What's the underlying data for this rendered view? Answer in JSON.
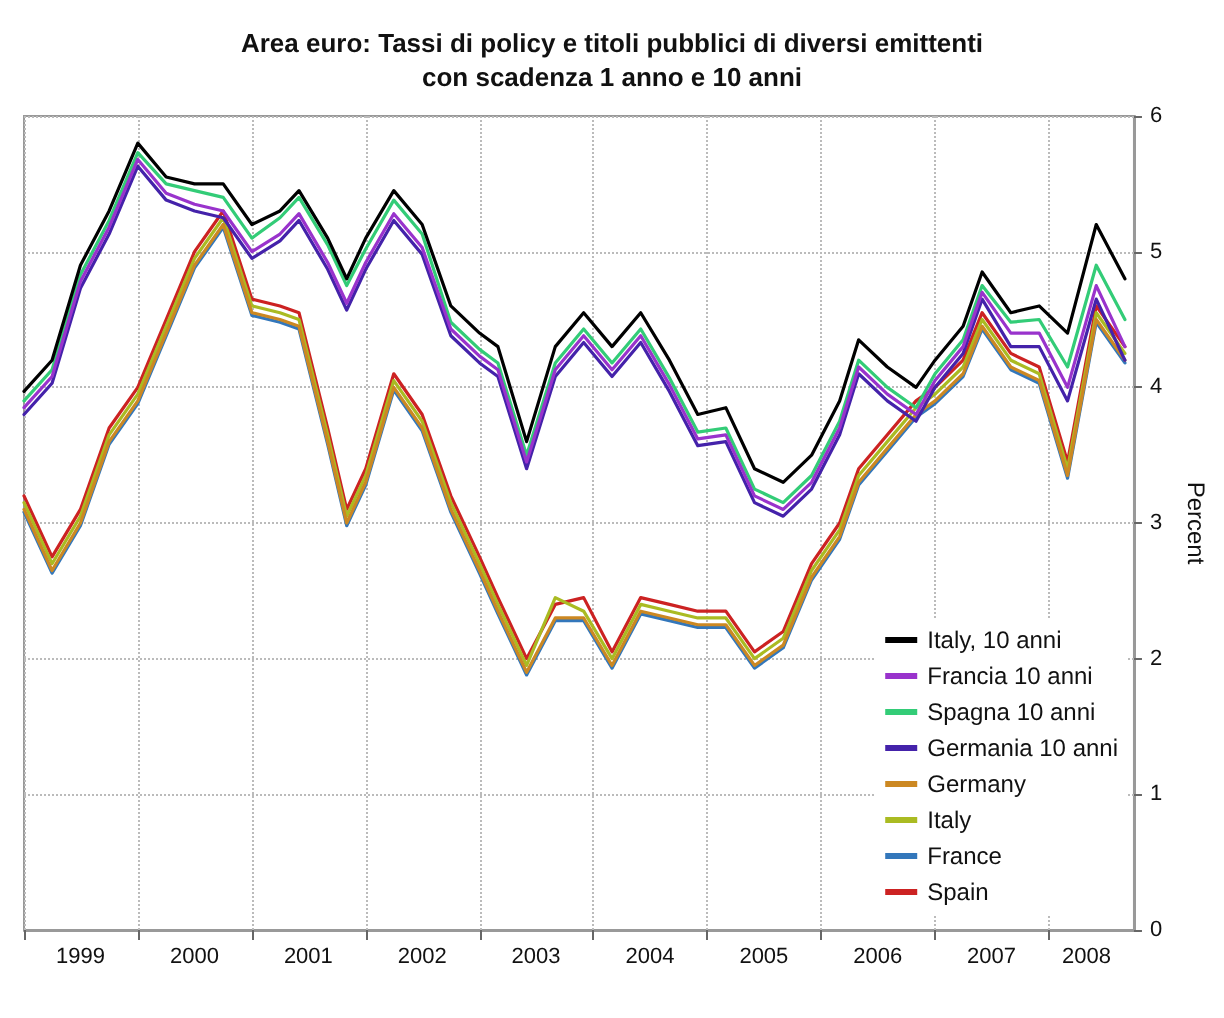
{
  "chart_data": {
    "type": "line",
    "title": "Area euro: Tassi di policy e titoli pubblici di diversi emittenti\ncon scadenza 1 anno e 10 anni",
    "ylabel": "Percent",
    "x": [
      "1999-01",
      "1999-04",
      "1999-07",
      "1999-10",
      "2000-01",
      "2000-04",
      "2000-07",
      "2000-10",
      "2001-01",
      "2001-04",
      "2001-06",
      "2001-09",
      "2001-11",
      "2002-01",
      "2002-04",
      "2002-07",
      "2002-10",
      "2003-01",
      "2003-03",
      "2003-06",
      "2003-09",
      "2003-12",
      "2004-03",
      "2004-06",
      "2004-09",
      "2004-12",
      "2005-03",
      "2005-06",
      "2005-09",
      "2005-12",
      "2006-03",
      "2006-05",
      "2006-08",
      "2006-11",
      "2007-01",
      "2007-04",
      "2007-06",
      "2007-09",
      "2007-12",
      "2008-03",
      "2008-06",
      "2008-09"
    ],
    "xlim": [
      "1999-01",
      "2008-09-30"
    ],
    "xticks": [
      {
        "value": "1999-01",
        "label": null
      },
      {
        "value": "1999-07",
        "label": "1999"
      },
      {
        "value": "2000-01",
        "label": null
      },
      {
        "value": "2000-07",
        "label": "2000"
      },
      {
        "value": "2001-01",
        "label": null
      },
      {
        "value": "2001-07",
        "label": "2001"
      },
      {
        "value": "2002-01",
        "label": null
      },
      {
        "value": "2002-07",
        "label": "2002"
      },
      {
        "value": "2003-01",
        "label": null
      },
      {
        "value": "2003-07",
        "label": "2003"
      },
      {
        "value": "2004-01",
        "label": null
      },
      {
        "value": "2004-07",
        "label": "2004"
      },
      {
        "value": "2005-01",
        "label": null
      },
      {
        "value": "2005-07",
        "label": "2005"
      },
      {
        "value": "2006-01",
        "label": null
      },
      {
        "value": "2006-07",
        "label": "2006"
      },
      {
        "value": "2007-01",
        "label": null
      },
      {
        "value": "2007-07",
        "label": "2007"
      },
      {
        "value": "2008-01",
        "label": null
      },
      {
        "value": "2008-05",
        "label": "2008"
      }
    ],
    "ylim": [
      0,
      6
    ],
    "yticks": [
      0,
      1,
      2,
      3,
      4,
      5,
      6
    ],
    "grid": true,
    "legend": "bottom right",
    "marker": "none",
    "line_style": "solid",
    "series": [
      {
        "name": "Italy, 10 anni",
        "color": "#000000",
        "values": [
          3.97,
          4.2,
          4.9,
          5.3,
          5.8,
          5.55,
          5.5,
          5.5,
          5.2,
          5.3,
          5.45,
          5.1,
          4.8,
          5.1,
          5.45,
          5.2,
          4.6,
          4.4,
          4.3,
          3.6,
          4.3,
          4.55,
          4.3,
          4.55,
          4.2,
          3.8,
          3.85,
          3.4,
          3.3,
          3.5,
          3.9,
          4.35,
          4.15,
          4.0,
          4.2,
          4.45,
          4.85,
          4.55,
          4.6,
          4.4,
          5.2,
          4.8
        ]
      },
      {
        "name": "Francia 10 anni",
        "color": "#9933cc",
        "values": [
          3.85,
          4.08,
          4.78,
          5.18,
          5.68,
          5.43,
          5.35,
          5.3,
          5.0,
          5.13,
          5.28,
          4.92,
          4.62,
          4.92,
          5.28,
          5.03,
          4.43,
          4.23,
          4.13,
          3.45,
          4.13,
          4.38,
          4.13,
          4.38,
          4.02,
          3.62,
          3.65,
          3.2,
          3.1,
          3.3,
          3.7,
          4.15,
          3.95,
          3.8,
          4.05,
          4.3,
          4.7,
          4.4,
          4.4,
          4.0,
          4.75,
          4.3
        ]
      },
      {
        "name": "Spagna 10 anni",
        "color": "#33cc77",
        "values": [
          3.9,
          4.13,
          4.83,
          5.23,
          5.73,
          5.5,
          5.45,
          5.4,
          5.1,
          5.25,
          5.4,
          5.05,
          4.75,
          5.02,
          5.38,
          5.13,
          4.48,
          4.28,
          4.18,
          3.5,
          4.18,
          4.43,
          4.18,
          4.43,
          4.07,
          3.67,
          3.7,
          3.25,
          3.15,
          3.35,
          3.75,
          4.2,
          4.0,
          3.85,
          4.1,
          4.35,
          4.75,
          4.48,
          4.5,
          4.15,
          4.9,
          4.5
        ]
      },
      {
        "name": "Germania 10 anni",
        "color": "#4422aa",
        "values": [
          3.8,
          4.03,
          4.73,
          5.13,
          5.63,
          5.38,
          5.3,
          5.25,
          4.95,
          5.08,
          5.23,
          4.87,
          4.57,
          4.87,
          5.23,
          4.98,
          4.38,
          4.18,
          4.08,
          3.4,
          4.08,
          4.33,
          4.08,
          4.33,
          3.97,
          3.57,
          3.6,
          3.15,
          3.05,
          3.25,
          3.65,
          4.1,
          3.9,
          3.75,
          4.0,
          4.25,
          4.65,
          4.3,
          4.3,
          3.9,
          4.65,
          4.2
        ]
      },
      {
        "name": "Germany",
        "color": "#cc8822",
        "values": [
          3.1,
          2.65,
          3.0,
          3.6,
          3.9,
          4.4,
          4.9,
          5.2,
          4.55,
          4.5,
          4.45,
          3.6,
          3.0,
          3.3,
          4.0,
          3.7,
          3.1,
          2.65,
          2.35,
          1.9,
          2.3,
          2.3,
          1.95,
          2.35,
          2.3,
          2.25,
          2.25,
          1.95,
          2.1,
          2.6,
          2.9,
          3.3,
          3.55,
          3.8,
          3.9,
          4.1,
          4.45,
          4.15,
          4.05,
          3.35,
          4.5,
          4.2
        ]
      },
      {
        "name": "Italy",
        "color": "#aabb22",
        "values": [
          3.15,
          2.7,
          3.05,
          3.65,
          3.95,
          4.45,
          4.95,
          5.25,
          4.6,
          4.55,
          4.5,
          3.65,
          3.05,
          3.35,
          4.05,
          3.75,
          3.15,
          2.7,
          2.4,
          1.95,
          2.45,
          2.35,
          2.0,
          2.4,
          2.35,
          2.3,
          2.3,
          2.0,
          2.15,
          2.65,
          2.95,
          3.35,
          3.6,
          3.85,
          3.95,
          4.15,
          4.5,
          4.2,
          4.1,
          3.4,
          4.55,
          4.25
        ]
      },
      {
        "name": "France",
        "color": "#3377bb",
        "values": [
          3.08,
          2.63,
          2.98,
          3.58,
          3.88,
          4.38,
          4.88,
          5.18,
          4.53,
          4.48,
          4.43,
          3.58,
          2.98,
          3.28,
          3.98,
          3.68,
          3.08,
          2.63,
          2.33,
          1.88,
          2.28,
          2.28,
          1.93,
          2.33,
          2.28,
          2.23,
          2.23,
          1.93,
          2.08,
          2.58,
          2.88,
          3.28,
          3.53,
          3.78,
          3.88,
          4.08,
          4.43,
          4.13,
          4.03,
          3.33,
          4.48,
          4.18
        ]
      },
      {
        "name": "Spain",
        "color": "#cc2222",
        "values": [
          3.2,
          2.75,
          3.1,
          3.7,
          4.0,
          4.5,
          5.0,
          5.3,
          4.65,
          4.6,
          4.55,
          3.7,
          3.1,
          3.4,
          4.1,
          3.8,
          3.2,
          2.75,
          2.45,
          2.0,
          2.4,
          2.45,
          2.05,
          2.45,
          2.4,
          2.35,
          2.35,
          2.05,
          2.2,
          2.7,
          3.0,
          3.4,
          3.65,
          3.9,
          4.0,
          4.2,
          4.55,
          4.25,
          4.15,
          3.45,
          4.6,
          4.3
        ]
      }
    ]
  }
}
